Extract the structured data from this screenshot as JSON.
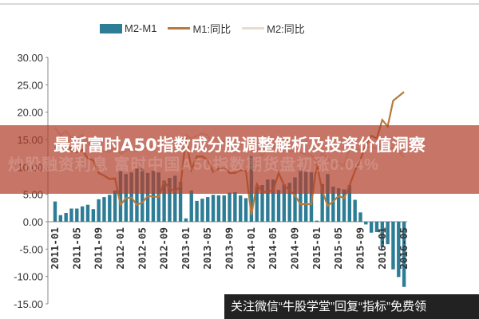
{
  "chart_data": {
    "type": "bar",
    "legend": [
      "M2-M1",
      "M1:同比",
      "M2:同比"
    ],
    "legend_position": "top",
    "ylim": [
      -15,
      30
    ],
    "yticks": [
      "30.00",
      "25.00",
      "20.00",
      "15.00",
      "10.00",
      "5.00",
      "0.00",
      "-5.00",
      "-10.00",
      "-15.00"
    ],
    "xticks": [
      "2011-01",
      "2011-05",
      "2011-09",
      "2012-01",
      "2012-05",
      "2012-09",
      "2013-01",
      "2013-05",
      "2013-09",
      "2014-01",
      "2014-05",
      "2014-09",
      "2015-01",
      "2015-05",
      "2015-09",
      "2016-01",
      "2016-05"
    ],
    "x_start": "2011-01",
    "x_end": "2016-05",
    "grid": false,
    "series": [
      {
        "name": "M2-M1",
        "type": "bar",
        "color": "#2e7d96",
        "values": [
          3.7,
          1.2,
          1.6,
          2.4,
          2.4,
          2.8,
          3.1,
          2.3,
          4.1,
          4.5,
          4.9,
          5.7,
          9.3,
          8.7,
          9.0,
          9.7,
          9.7,
          8.9,
          9.3,
          9.0,
          7.5,
          8.0,
          8.4,
          7.3,
          0.6,
          5.7,
          3.8,
          4.2,
          4.5,
          4.9,
          4.8,
          4.8,
          5.3,
          5.4,
          4.8,
          4.3,
          12.0,
          6.4,
          6.7,
          7.7,
          7.7,
          5.8,
          6.8,
          7.1,
          8.1,
          9.4,
          9.1,
          9.0,
          0.2,
          6.9,
          8.7,
          6.4,
          6.1,
          5.9,
          6.7,
          4.0,
          1.7,
          -0.5,
          -2.0,
          -1.9,
          -4.6,
          -4.1,
          -8.7,
          -10.1,
          -11.9
        ]
      },
      {
        "name": "M1:同比",
        "type": "line",
        "color": "#b87a3c",
        "values": [
          13.5,
          14.5,
          15.0,
          12.9,
          12.7,
          13.1,
          11.6,
          11.2,
          8.9,
          8.4,
          7.8,
          7.9,
          3.1,
          4.3,
          4.4,
          3.1,
          3.5,
          4.7,
          4.6,
          4.5,
          7.3,
          6.1,
          5.5,
          6.5,
          15.3,
          9.5,
          11.9,
          11.9,
          11.3,
          9.1,
          9.7,
          9.9,
          8.9,
          8.9,
          9.4,
          9.3,
          1.2,
          6.9,
          5.4,
          5.5,
          5.7,
          8.9,
          6.7,
          5.7,
          4.8,
          3.2,
          3.2,
          3.2,
          10.6,
          5.6,
          2.9,
          3.7,
          4.7,
          4.3,
          6.6,
          9.3,
          11.4,
          14.0,
          15.7,
          15.2,
          18.6,
          17.4,
          22.1,
          22.9,
          23.7
        ]
      },
      {
        "name": "M2:同比",
        "type": "line",
        "color": "#eadccc",
        "values": [
          17.2,
          15.7,
          16.6,
          15.3,
          15.1,
          15.9,
          14.7,
          13.5,
          13.0,
          12.9,
          12.7,
          13.6,
          12.4,
          13.0,
          13.4,
          12.8,
          13.2,
          13.6,
          13.9,
          13.5,
          14.8,
          14.1,
          13.9,
          13.8,
          15.9,
          15.2,
          15.7,
          16.1,
          15.8,
          14.0,
          14.5,
          14.7,
          14.2,
          14.3,
          14.2,
          13.6,
          13.2,
          13.3,
          12.1,
          13.2,
          13.4,
          14.7,
          13.5,
          12.8,
          12.9,
          12.6,
          12.3,
          12.2,
          10.8,
          12.5,
          11.6,
          10.1,
          10.8,
          10.2,
          13.3,
          13.3,
          13.1,
          13.5,
          13.7,
          13.3,
          14.0,
          13.3,
          13.4,
          12.8,
          11.8
        ]
      }
    ]
  },
  "overlay": {
    "title": "最新富时A50指数成分股调整解析及投资价值洞察",
    "watermark": "炒股融资利息 富时中国A50指数期货盘初涨0.04%",
    "promo": "关注微信“牛股学堂”回复“指标”免费领"
  }
}
